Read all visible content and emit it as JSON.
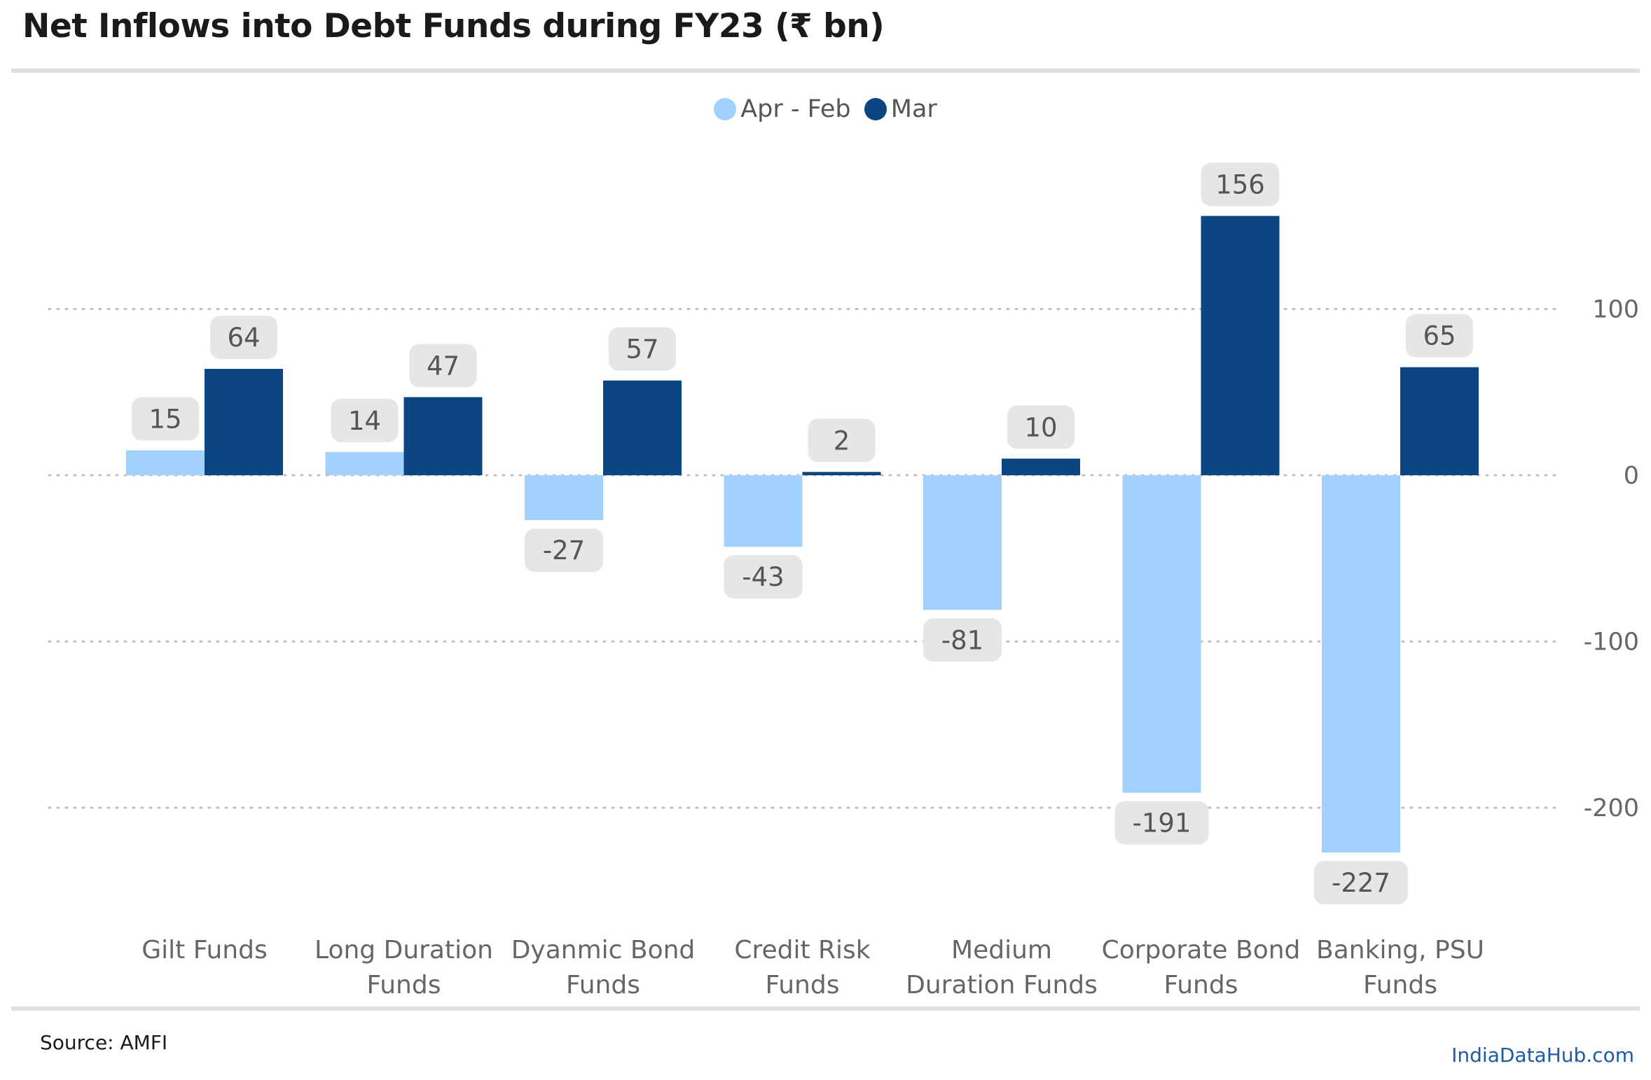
{
  "header": {
    "title": "Net Inflows into Debt Funds during FY23 (₹ bn)"
  },
  "footer": {
    "source": "Source: AMFI",
    "brand": "IndiaDataHub.com"
  },
  "colors": {
    "light": "#a3d1fd",
    "dark": "#0b4682",
    "label_bg": "#e6e6e6",
    "grid": "#bfbfbf"
  },
  "chart_data": {
    "type": "bar",
    "title": "Net Inflows into Debt Funds during FY23 (₹ bn)",
    "categories": [
      [
        "Gilt Funds"
      ],
      [
        "Long Duration",
        "Funds"
      ],
      [
        "Dyanmic Bond",
        "Funds"
      ],
      [
        "Credit Risk",
        "Funds"
      ],
      [
        "Medium",
        "Duration Funds"
      ],
      [
        "Corporate Bond",
        "Funds"
      ],
      [
        "Banking, PSU",
        "Funds"
      ]
    ],
    "series": [
      {
        "name": "Apr - Feb",
        "values": [
          15,
          14,
          -27,
          -43,
          -81,
          -191,
          -227
        ]
      },
      {
        "name": "Mar",
        "values": [
          64,
          47,
          57,
          2,
          10,
          156,
          65
        ]
      }
    ],
    "yticks": [
      100,
      0,
      -100,
      -200
    ],
    "ylim": [
      -260,
      190
    ],
    "legend": "top-center",
    "grid": true
  }
}
